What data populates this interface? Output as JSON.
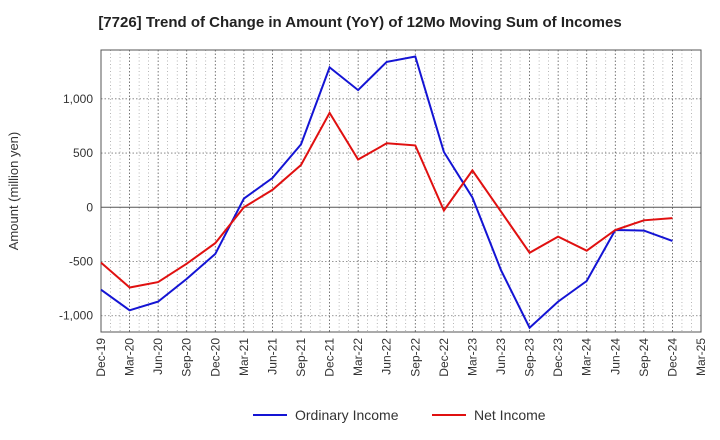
{
  "chart_data": {
    "type": "line",
    "title": "[7726]  Trend of Change in Amount (YoY) of 12Mo Moving Sum of Incomes",
    "xlabel": "",
    "ylabel": "Amount (million yen)",
    "ylim": [
      -1150,
      1450
    ],
    "yticks": [
      -1000,
      -500,
      0,
      500,
      1000
    ],
    "ytick_labels": [
      "-1,000",
      "-500",
      "0",
      "500",
      "1,000"
    ],
    "categories": [
      "Dec-19",
      "Mar-20",
      "Jun-20",
      "Sep-20",
      "Dec-20",
      "Mar-21",
      "Jun-21",
      "Sep-21",
      "Dec-21",
      "Mar-22",
      "Jun-22",
      "Sep-22",
      "Dec-22",
      "Mar-23",
      "Jun-23",
      "Sep-23",
      "Dec-23",
      "Mar-24",
      "Jun-24",
      "Sep-24",
      "Dec-24",
      "Mar-25"
    ],
    "grid": true,
    "legend_position": "bottom",
    "series": [
      {
        "name": "Ordinary Income",
        "color": "#1414d4",
        "values": [
          -760,
          -950,
          -870,
          -660,
          -430,
          80,
          270,
          580,
          1290,
          1080,
          1340,
          1390,
          510,
          90,
          -580,
          -1110,
          -870,
          -680,
          -210,
          -215,
          -310,
          null
        ]
      },
      {
        "name": "Net Income",
        "color": "#e01010",
        "values": [
          -510,
          -740,
          -690,
          -520,
          -330,
          0,
          160,
          390,
          870,
          440,
          590,
          570,
          -30,
          340,
          -40,
          -420,
          -270,
          -400,
          -210,
          -120,
          -100,
          null
        ]
      }
    ]
  }
}
